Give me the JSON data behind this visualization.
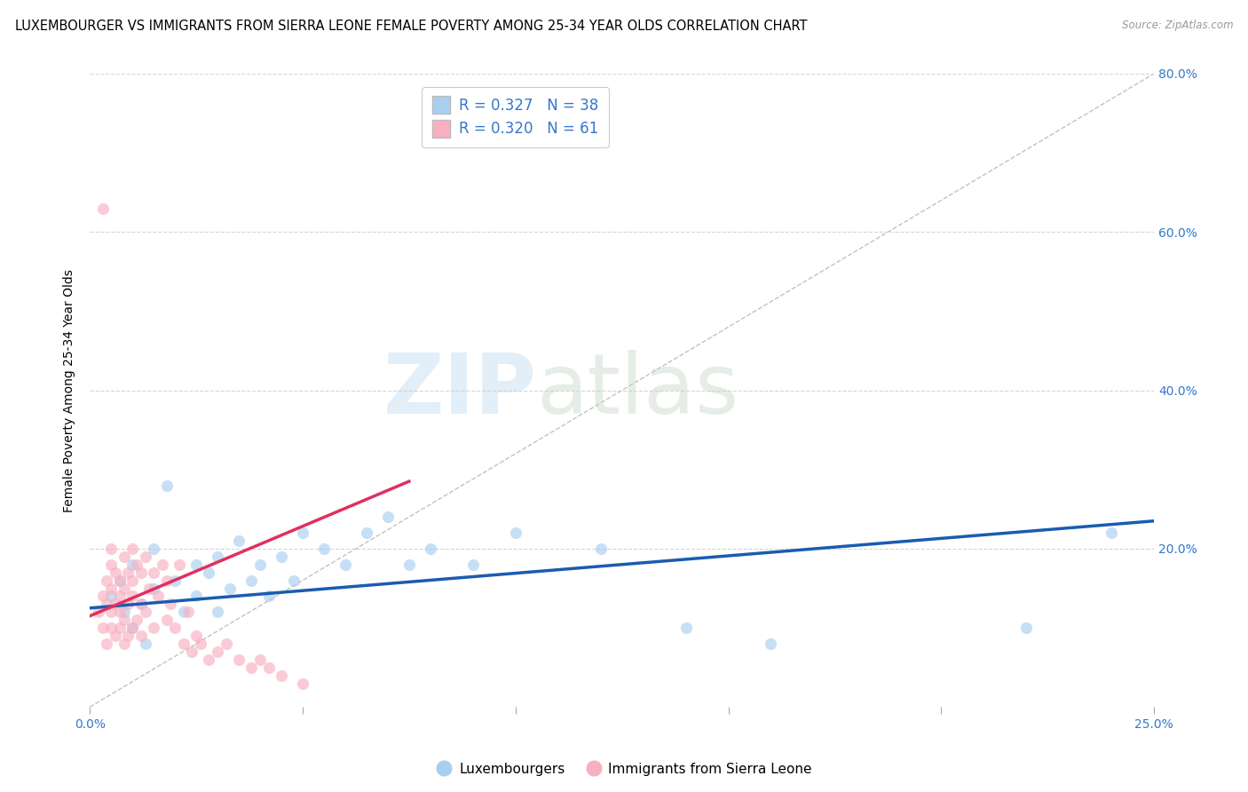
{
  "title": "LUXEMBOURGER VS IMMIGRANTS FROM SIERRA LEONE FEMALE POVERTY AMONG 25-34 YEAR OLDS CORRELATION CHART",
  "source": "Source: ZipAtlas.com",
  "ylabel": "Female Poverty Among 25-34 Year Olds",
  "watermark_zip": "ZIP",
  "watermark_atlas": "atlas",
  "xlim": [
    0.0,
    0.25
  ],
  "ylim": [
    0.0,
    0.8
  ],
  "xticks": [
    0.0,
    0.05,
    0.1,
    0.15,
    0.2,
    0.25
  ],
  "xticklabels": [
    "0.0%",
    "",
    "",
    "",
    "",
    "25.0%"
  ],
  "yticks_right": [
    0.0,
    0.2,
    0.4,
    0.6,
    0.8
  ],
  "yticklabels_right": [
    "",
    "20.0%",
    "40.0%",
    "60.0%",
    "80.0%"
  ],
  "legend_label_blue": "Luxembourgers",
  "legend_label_pink": "Immigrants from Sierra Leone",
  "R_blue": 0.327,
  "N_blue": 38,
  "R_pink": 0.32,
  "N_pink": 61,
  "blue_color": "#A8CEF0",
  "pink_color": "#F8B0C0",
  "blue_line_color": "#1A5CB0",
  "pink_line_color": "#E03060",
  "scatter_alpha": 0.65,
  "scatter_size": 90,
  "blue_scatter_x": [
    0.005,
    0.007,
    0.008,
    0.01,
    0.01,
    0.012,
    0.013,
    0.015,
    0.015,
    0.018,
    0.02,
    0.022,
    0.025,
    0.025,
    0.028,
    0.03,
    0.03,
    0.033,
    0.035,
    0.038,
    0.04,
    0.042,
    0.045,
    0.048,
    0.05,
    0.055,
    0.06,
    0.065,
    0.07,
    0.075,
    0.08,
    0.09,
    0.1,
    0.12,
    0.14,
    0.16,
    0.22,
    0.24
  ],
  "blue_scatter_y": [
    0.14,
    0.16,
    0.12,
    0.1,
    0.18,
    0.13,
    0.08,
    0.15,
    0.2,
    0.28,
    0.16,
    0.12,
    0.18,
    0.14,
    0.17,
    0.19,
    0.12,
    0.15,
    0.21,
    0.16,
    0.18,
    0.14,
    0.19,
    0.16,
    0.22,
    0.2,
    0.18,
    0.22,
    0.24,
    0.18,
    0.2,
    0.18,
    0.22,
    0.2,
    0.1,
    0.08,
    0.1,
    0.22
  ],
  "pink_scatter_x": [
    0.002,
    0.003,
    0.003,
    0.004,
    0.004,
    0.004,
    0.005,
    0.005,
    0.005,
    0.005,
    0.005,
    0.006,
    0.006,
    0.006,
    0.007,
    0.007,
    0.007,
    0.007,
    0.008,
    0.008,
    0.008,
    0.008,
    0.009,
    0.009,
    0.009,
    0.01,
    0.01,
    0.01,
    0.01,
    0.011,
    0.011,
    0.012,
    0.012,
    0.012,
    0.013,
    0.013,
    0.014,
    0.015,
    0.015,
    0.016,
    0.017,
    0.018,
    0.018,
    0.019,
    0.02,
    0.021,
    0.022,
    0.023,
    0.024,
    0.025,
    0.026,
    0.028,
    0.03,
    0.032,
    0.035,
    0.038,
    0.04,
    0.042,
    0.045,
    0.05,
    0.003
  ],
  "pink_scatter_y": [
    0.12,
    0.1,
    0.14,
    0.08,
    0.13,
    0.16,
    0.1,
    0.12,
    0.15,
    0.18,
    0.2,
    0.09,
    0.13,
    0.17,
    0.1,
    0.12,
    0.14,
    0.16,
    0.08,
    0.11,
    0.15,
    0.19,
    0.09,
    0.13,
    0.17,
    0.1,
    0.14,
    0.16,
    0.2,
    0.11,
    0.18,
    0.09,
    0.13,
    0.17,
    0.12,
    0.19,
    0.15,
    0.1,
    0.17,
    0.14,
    0.18,
    0.11,
    0.16,
    0.13,
    0.1,
    0.18,
    0.08,
    0.12,
    0.07,
    0.09,
    0.08,
    0.06,
    0.07,
    0.08,
    0.06,
    0.05,
    0.06,
    0.05,
    0.04,
    0.03,
    0.63
  ],
  "blue_line_x": [
    0.0,
    0.25
  ],
  "blue_line_y": [
    0.125,
    0.235
  ],
  "pink_line_x": [
    0.0,
    0.075
  ],
  "pink_line_y": [
    0.115,
    0.285
  ],
  "ref_line_x": [
    0.0,
    0.25
  ],
  "ref_line_y": [
    0.0,
    0.8
  ],
  "grid_color": "#CCCCCC",
  "background_color": "#FFFFFF",
  "title_fontsize": 10.5,
  "axis_label_fontsize": 10,
  "tick_fontsize": 10,
  "legend_fontsize": 12
}
